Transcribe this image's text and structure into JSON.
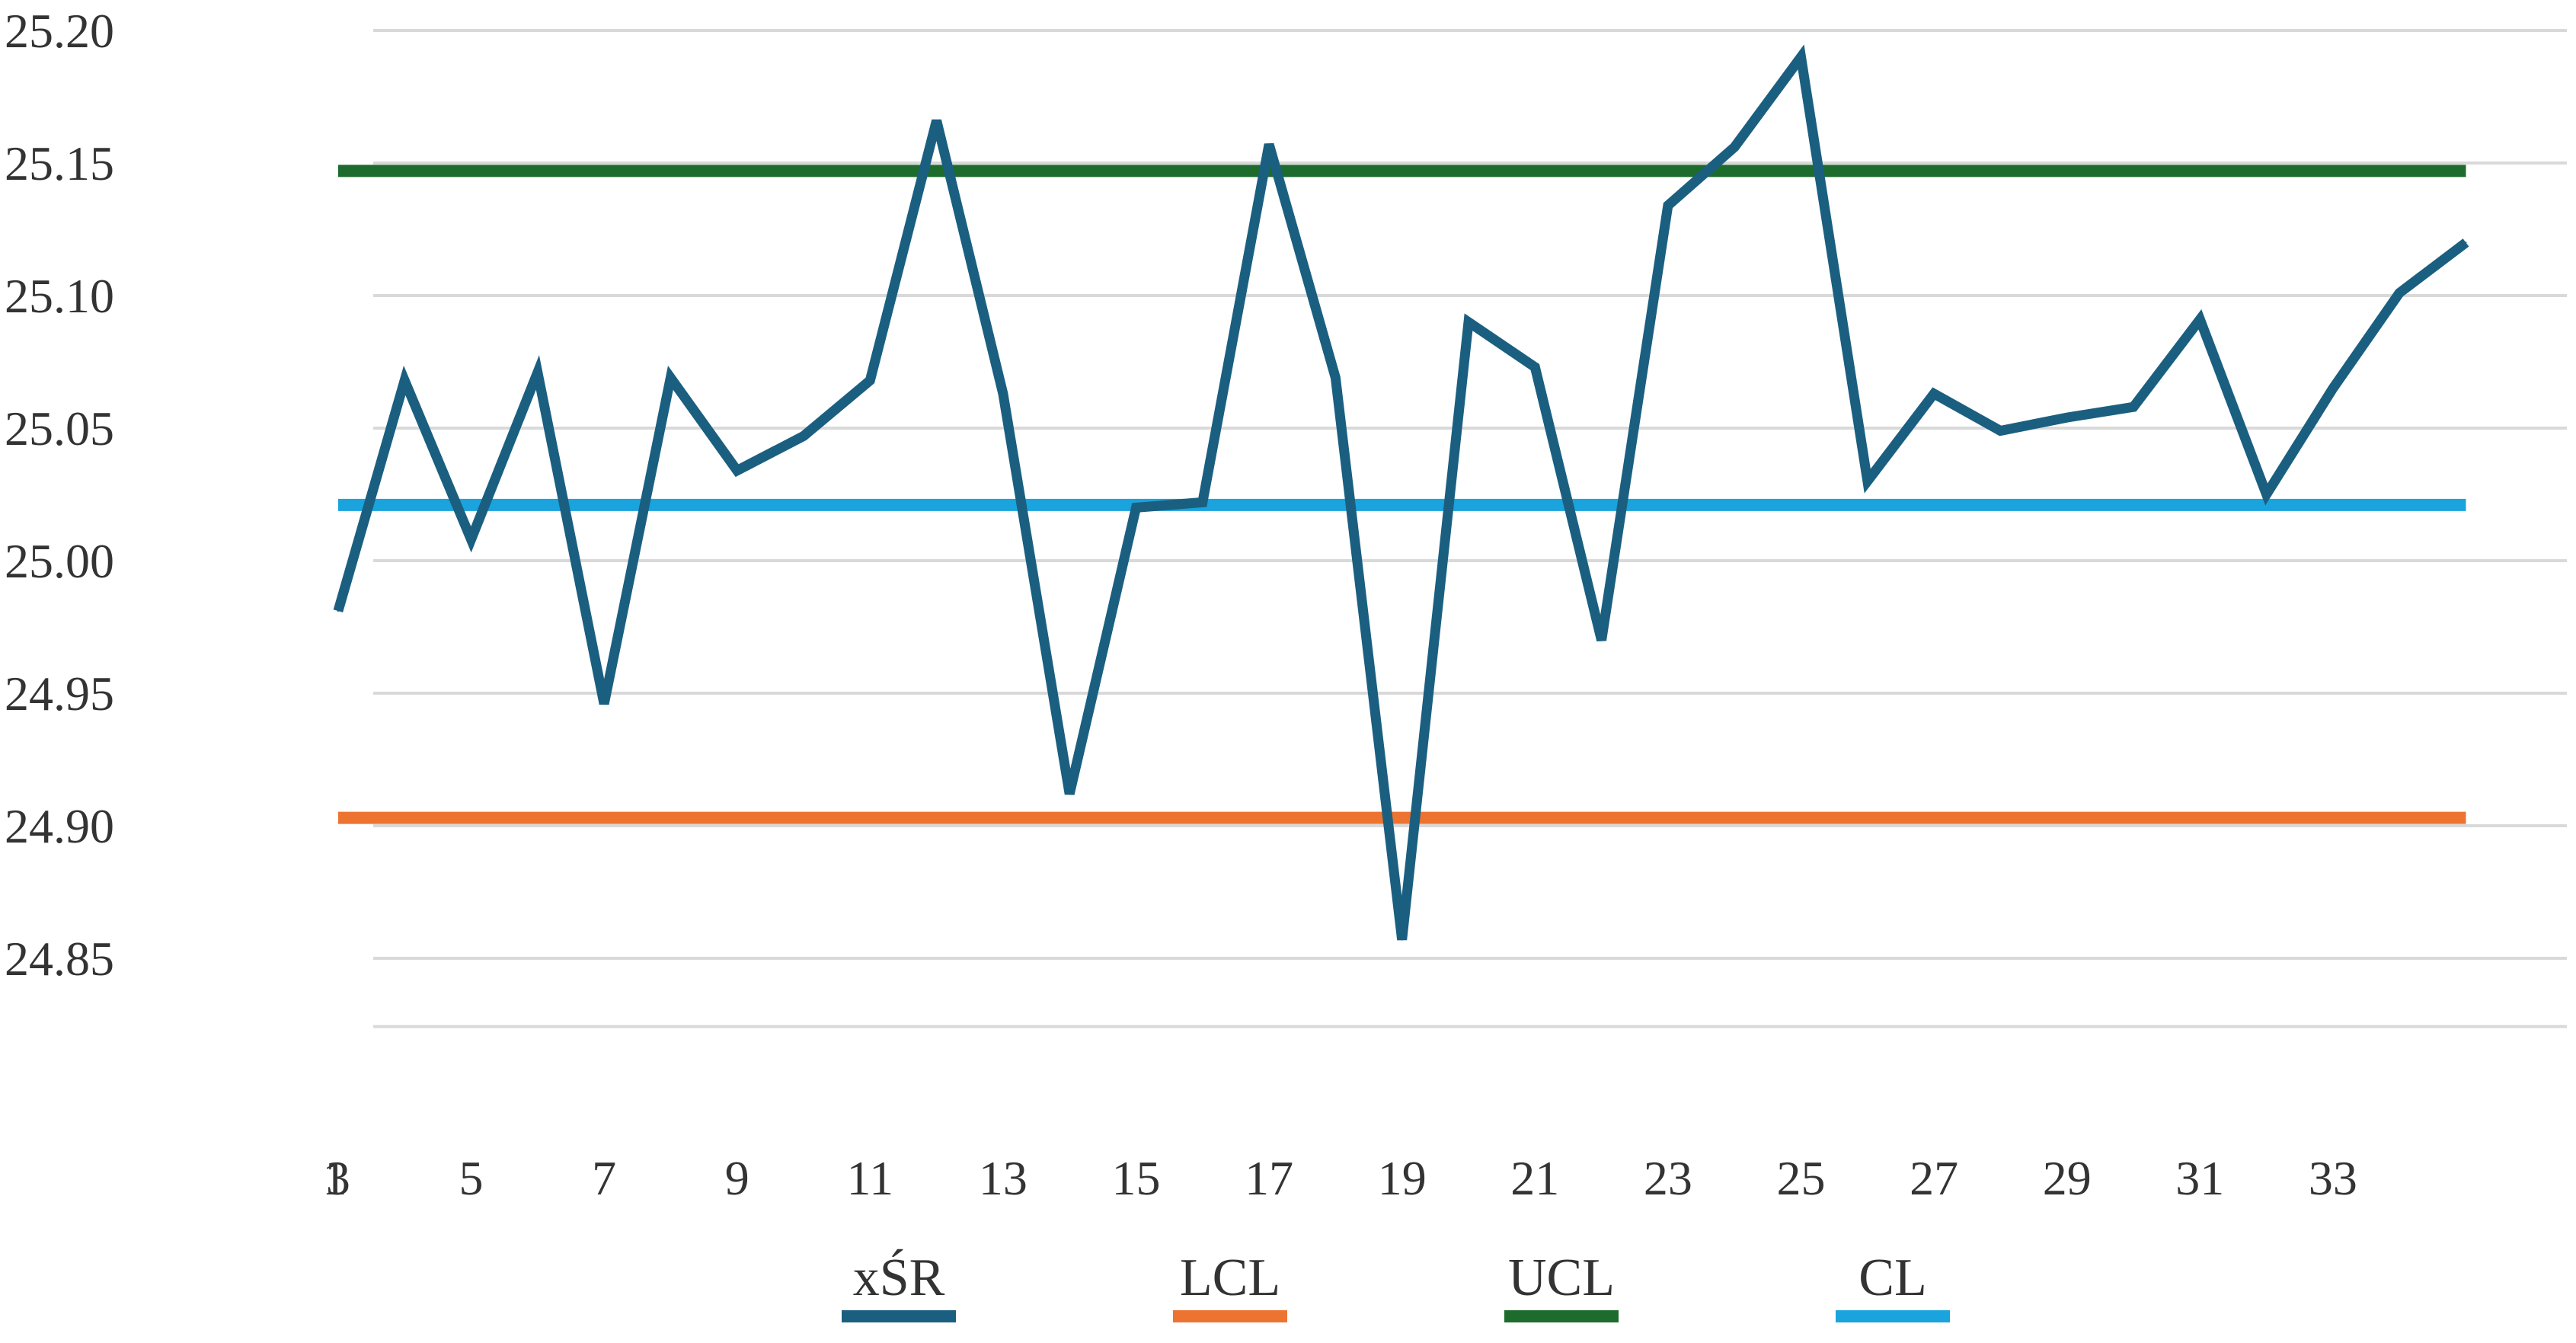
{
  "chart_data": {
    "type": "line",
    "title": "",
    "xlabel": "",
    "ylabel": "",
    "ylim": [
      24.83,
      25.21
    ],
    "xlim": [
      0,
      36.5
    ],
    "grid": true,
    "legend_placement": "bottom",
    "y_ticks": [
      "24.85",
      "24.90",
      "24.95",
      "25.00",
      "25.05",
      "25.10",
      "25.15",
      "25.20"
    ],
    "x_ticks": [
      "1",
      "3",
      "5",
      "7",
      "9",
      "11",
      "13",
      "15",
      "17",
      "19",
      "21",
      "23",
      "25",
      "27",
      "29",
      "31",
      "33"
    ],
    "series": [
      {
        "name": "xŚR",
        "color": "#1b5f80",
        "x": [
          3,
          4,
          5,
          6,
          7,
          8,
          9,
          10,
          11,
          12,
          13,
          14,
          15,
          16,
          17,
          18,
          19,
          20,
          21,
          22,
          23,
          24,
          25,
          26,
          27,
          28,
          29,
          30,
          31,
          32,
          33,
          34,
          35
        ],
        "values": [
          24.981,
          25.068,
          25.008,
          25.071,
          24.946,
          25.069,
          25.034,
          25.047,
          25.068,
          25.166,
          25.063,
          24.912,
          25.02,
          25.022,
          25.157,
          25.069,
          24.857,
          25.09,
          25.073,
          24.97,
          25.134,
          25.156,
          25.19,
          25.03,
          25.063,
          25.049,
          25.054,
          25.058,
          25.091,
          25.025,
          25.065,
          25.101,
          25.12
        ]
      },
      {
        "name": "LCL",
        "color": "#ed7331",
        "x": [
          3,
          35
        ],
        "values": [
          24.903,
          24.903
        ]
      },
      {
        "name": "UCL",
        "color": "#1e6b2e",
        "x": [
          3,
          35
        ],
        "values": [
          25.147,
          25.147
        ]
      },
      {
        "name": "CL",
        "color": "#1aa3dd",
        "x": [
          3,
          35
        ],
        "values": [
          25.021,
          25.021
        ]
      }
    ]
  }
}
